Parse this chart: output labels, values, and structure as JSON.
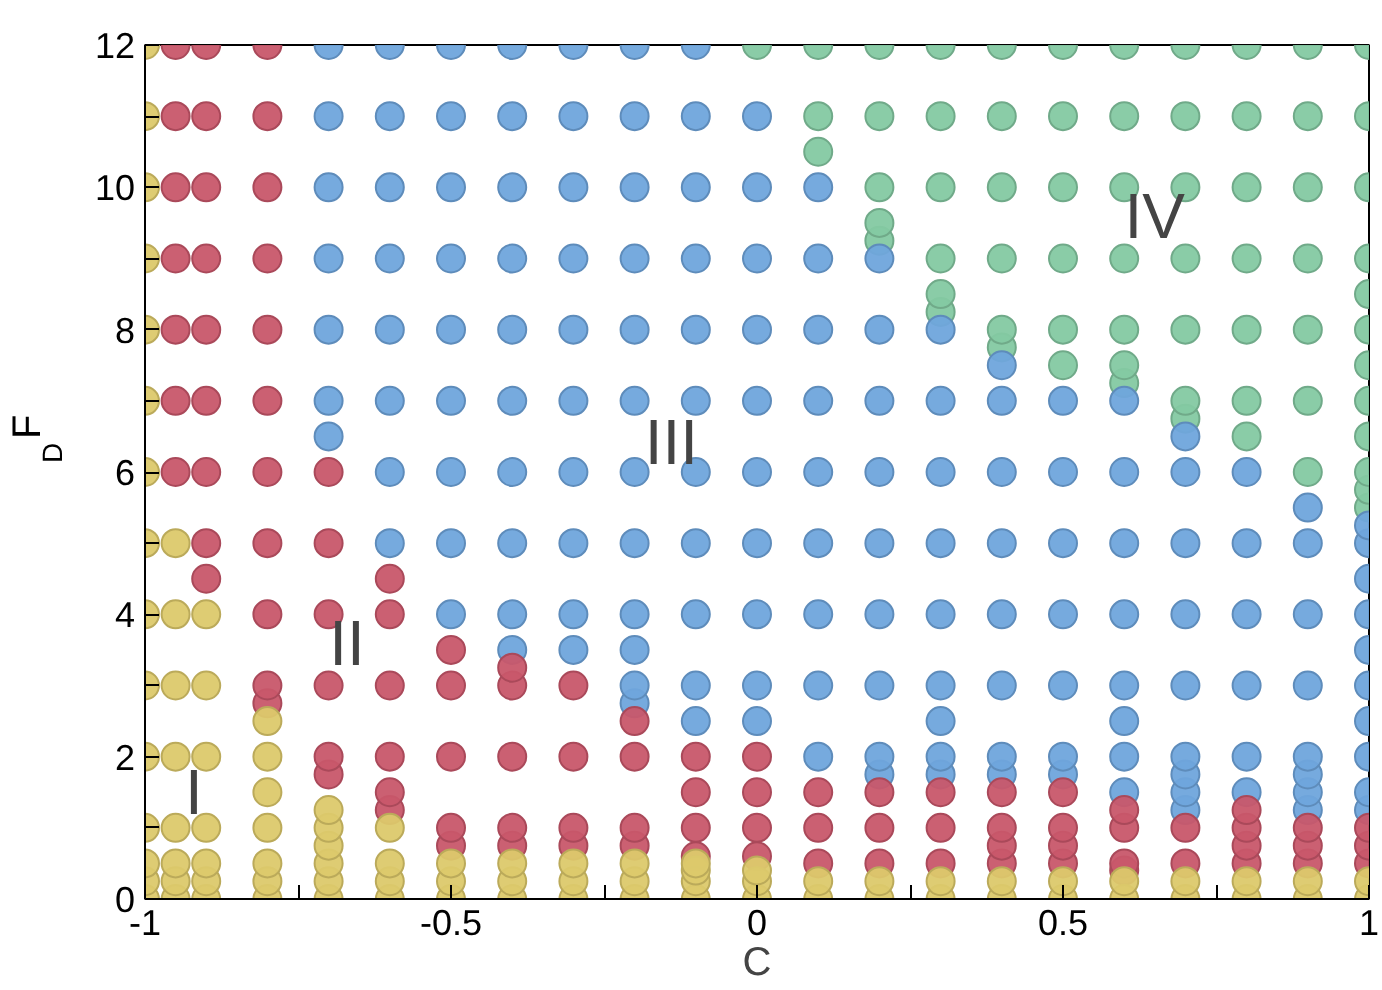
{
  "chart_data": {
    "type": "scatter",
    "xlabel": "C",
    "ylabel": "F$_{D}$",
    "xlim": [
      -1,
      1
    ],
    "ylim": [
      0,
      12
    ],
    "xticks": [
      -1,
      {
        "value": -0.75,
        "label": null
      },
      -0.5,
      {
        "value": -0.25,
        "label": null
      },
      0,
      {
        "value": 0.25,
        "label": null
      },
      0.5,
      {
        "value": 0.75,
        "label": null
      },
      1
    ],
    "yticks": [
      0,
      {
        "value": 1,
        "label": null
      },
      2,
      {
        "value": 3,
        "label": null
      },
      4,
      {
        "value": 5,
        "label": null
      },
      6,
      {
        "value": 7,
        "label": null
      },
      8,
      {
        "value": 9,
        "label": null
      },
      10,
      {
        "value": 11,
        "label": null
      },
      12
    ],
    "grid": false,
    "marker": "circle",
    "annotations": [
      "I",
      "II",
      "III",
      "IV"
    ],
    "series": [
      {
        "color": "#84c9a2",
        "x": [
          0,
          0.1,
          0.1,
          0.1,
          0.2,
          0.2,
          0.2,
          0.2,
          0.2,
          0.3,
          0.3,
          0.3,
          0.3,
          0.3,
          0.3,
          0.4,
          0.4,
          0.4,
          0.4,
          0.4,
          0.4,
          0.5,
          0.5,
          0.5,
          0.5,
          0.5,
          0.5,
          0.6,
          0.6,
          0.6,
          0.6,
          0.6,
          0.6,
          0.6,
          0.7,
          0.7,
          0.7,
          0.7,
          0.7,
          0.7,
          0.7,
          0.8,
          0.8,
          0.8,
          0.8,
          0.8,
          0.8,
          0.8,
          0.9,
          0.9,
          0.9,
          0.9,
          0.9,
          0.9,
          0.9,
          1,
          1,
          1,
          1,
          1,
          1,
          1,
          1,
          1,
          1,
          1,
          1
        ],
        "values": [
          12,
          10.5,
          11,
          12,
          9.25,
          9.5,
          10,
          11,
          12,
          8.25,
          8.5,
          9,
          10,
          11,
          12,
          7.75,
          8,
          9,
          10,
          11,
          12,
          7.5,
          8,
          9,
          10,
          11,
          12,
          7.25,
          7.5,
          8,
          9,
          10,
          11,
          12,
          6.75,
          7,
          8,
          9,
          10,
          11,
          12,
          6.5,
          7,
          8,
          9,
          10,
          11,
          12,
          6,
          7,
          8,
          9,
          10,
          11,
          12,
          5.5,
          5.75,
          6,
          6.5,
          7,
          7.5,
          8,
          8.5,
          9,
          10,
          11,
          12
        ]
      },
      {
        "color": "#6fa5dc",
        "x": [
          -0.7,
          -0.7,
          -0.7,
          -0.7,
          -0.7,
          -0.7,
          -0.7,
          -0.6,
          -0.6,
          -0.6,
          -0.6,
          -0.6,
          -0.6,
          -0.6,
          -0.6,
          -0.5,
          -0.5,
          -0.5,
          -0.5,
          -0.5,
          -0.5,
          -0.5,
          -0.5,
          -0.5,
          -0.4,
          -0.4,
          -0.4,
          -0.4,
          -0.4,
          -0.4,
          -0.4,
          -0.4,
          -0.4,
          -0.4,
          -0.3,
          -0.3,
          -0.3,
          -0.3,
          -0.3,
          -0.3,
          -0.3,
          -0.3,
          -0.3,
          -0.3,
          -0.2,
          -0.2,
          -0.2,
          -0.2,
          -0.2,
          -0.2,
          -0.2,
          -0.2,
          -0.2,
          -0.2,
          -0.2,
          -0.2,
          -0.1,
          -0.1,
          -0.1,
          -0.1,
          -0.1,
          -0.1,
          -0.1,
          -0.1,
          -0.1,
          -0.1,
          -0.1,
          0,
          0,
          0,
          0,
          0,
          0,
          0,
          0,
          0,
          0,
          0.1,
          0.1,
          0.1,
          0.1,
          0.1,
          0.1,
          0.1,
          0.1,
          0.1,
          0.2,
          0.2,
          0.2,
          0.2,
          0.2,
          0.2,
          0.2,
          0.2,
          0.2,
          0.3,
          0.3,
          0.3,
          0.3,
          0.3,
          0.3,
          0.3,
          0.3,
          0.3,
          0.4,
          0.4,
          0.4,
          0.4,
          0.4,
          0.4,
          0.4,
          0.4,
          0.5,
          0.5,
          0.5,
          0.5,
          0.5,
          0.5,
          0.5,
          0.6,
          0.6,
          0.6,
          0.6,
          0.6,
          0.6,
          0.6,
          0.6,
          0.7,
          0.7,
          0.7,
          0.7,
          0.7,
          0.7,
          0.7,
          0.7,
          0.7,
          0.8,
          0.8,
          0.8,
          0.8,
          0.8,
          0.8,
          0.9,
          0.9,
          0.9,
          0.9,
          0.9,
          0.9,
          0.9,
          0.9,
          1,
          1,
          1,
          1,
          1,
          1,
          1,
          1,
          1,
          1
        ],
        "values": [
          6.5,
          7,
          8,
          9,
          10,
          11,
          12,
          5,
          6,
          7,
          8,
          9,
          10,
          11,
          12,
          4,
          5,
          6,
          7,
          8,
          9,
          10,
          11,
          12,
          3.5,
          4,
          5,
          6,
          7,
          8,
          9,
          10,
          11,
          12,
          3.5,
          4,
          5,
          6,
          7,
          8,
          9,
          10,
          11,
          12,
          2.75,
          3,
          3.5,
          4,
          5,
          6,
          7,
          8,
          9,
          10,
          11,
          12,
          2.5,
          3,
          4,
          5,
          6,
          7,
          8,
          9,
          10,
          11,
          12,
          2.5,
          3,
          4,
          5,
          6,
          7,
          8,
          9,
          10,
          11,
          2,
          3,
          4,
          5,
          6,
          7,
          8,
          9,
          10,
          1.75,
          2,
          3,
          4,
          5,
          6,
          7,
          8,
          9,
          1.75,
          2,
          2.5,
          3,
          4,
          5,
          6,
          7,
          8,
          1.75,
          2,
          3,
          4,
          5,
          6,
          7,
          7.5,
          1.75,
          2,
          3,
          4,
          5,
          6,
          7,
          1.5,
          2,
          2.5,
          3,
          4,
          5,
          6,
          7,
          1.25,
          1.5,
          1.75,
          2,
          3,
          4,
          5,
          6,
          6.5,
          1.5,
          2,
          3,
          4,
          5,
          6,
          1.25,
          1.5,
          1.75,
          2,
          3,
          4,
          5,
          5.5,
          1.25,
          1.5,
          2,
          2.5,
          3,
          3.5,
          4,
          4.5,
          5,
          5.25
        ]
      },
      {
        "color": "#c8576a",
        "x": [
          -0.95,
          -0.95,
          -0.95,
          -0.95,
          -0.95,
          -0.95,
          -0.95,
          -0.9,
          -0.9,
          -0.9,
          -0.9,
          -0.9,
          -0.9,
          -0.9,
          -0.9,
          -0.9,
          -0.8,
          -0.8,
          -0.8,
          -0.8,
          -0.8,
          -0.8,
          -0.8,
          -0.8,
          -0.8,
          -0.8,
          -0.8,
          -0.7,
          -0.7,
          -0.7,
          -0.7,
          -0.7,
          -0.7,
          -0.6,
          -0.6,
          -0.6,
          -0.6,
          -0.6,
          -0.6,
          -0.5,
          -0.5,
          -0.5,
          -0.5,
          -0.5,
          -0.4,
          -0.4,
          -0.4,
          -0.4,
          -0.4,
          -0.3,
          -0.3,
          -0.3,
          -0.3,
          -0.2,
          -0.2,
          -0.2,
          -0.2,
          -0.1,
          -0.1,
          -0.1,
          -0.1,
          0,
          0,
          0,
          0,
          0.1,
          0.1,
          0.1,
          0.2,
          0.2,
          0.2,
          0.3,
          0.3,
          0.3,
          0.4,
          0.4,
          0.4,
          0.4,
          0.5,
          0.5,
          0.5,
          0.5,
          0.6,
          0.6,
          0.6,
          0.6,
          0.7,
          0.7,
          0.8,
          0.8,
          0.8,
          0.8,
          0.9,
          0.9,
          0.9,
          1,
          1,
          1
        ],
        "values": [
          6,
          7,
          8,
          9,
          10,
          11,
          12,
          4.5,
          5,
          6,
          7,
          8,
          9,
          10,
          11,
          12,
          2.75,
          3,
          4,
          5,
          6,
          7,
          8,
          9,
          10,
          11,
          12,
          1.75,
          2,
          3,
          4,
          5,
          6,
          1.25,
          1.5,
          2,
          3,
          4,
          4.5,
          0.75,
          1,
          2,
          3,
          3.5,
          0.75,
          1,
          2,
          3,
          3.25,
          0.75,
          1,
          2,
          3,
          0.75,
          1,
          2,
          2.5,
          0.6,
          1,
          1.5,
          2,
          0.6,
          1,
          1.5,
          2,
          0.5,
          1,
          1.5,
          0.5,
          1,
          1.5,
          0.5,
          1,
          1.5,
          0.5,
          0.75,
          1,
          1.5,
          0.5,
          0.75,
          1,
          1.5,
          0.4,
          0.5,
          1,
          1.25,
          0.5,
          1,
          0.5,
          0.75,
          1,
          1.25,
          0.5,
          0.75,
          1,
          0.5,
          0.75,
          1
        ]
      },
      {
        "color": "#dcc96b",
        "x": [
          -1,
          -1,
          -1,
          -1,
          -1,
          -1,
          -1,
          -1,
          -1,
          -1,
          -1,
          -1,
          -1,
          -1,
          -1,
          -0.95,
          -0.95,
          -0.95,
          -0.95,
          -0.95,
          -0.95,
          -0.95,
          -0.95,
          -0.9,
          -0.9,
          -0.9,
          -0.9,
          -0.9,
          -0.9,
          -0.9,
          -0.8,
          -0.8,
          -0.8,
          -0.8,
          -0.8,
          -0.8,
          -0.8,
          -0.7,
          -0.7,
          -0.7,
          -0.7,
          -0.7,
          -0.7,
          -0.6,
          -0.6,
          -0.6,
          -0.6,
          -0.5,
          -0.5,
          -0.5,
          -0.4,
          -0.4,
          -0.4,
          -0.3,
          -0.3,
          -0.3,
          -0.2,
          -0.2,
          -0.2,
          -0.1,
          -0.1,
          -0.1,
          -0.1,
          0,
          0,
          0,
          0.1,
          0.1,
          0.2,
          0.2,
          0.3,
          0.3,
          0.4,
          0.4,
          0.5,
          0.5,
          0.6,
          0.6,
          0.7,
          0.7,
          0.8,
          0.8,
          0.9,
          0.9,
          1,
          1
        ],
        "values": [
          0,
          0.25,
          0.5,
          1,
          2,
          3,
          4,
          5,
          6,
          7,
          8,
          9,
          10,
          11,
          12,
          0,
          0.25,
          0.5,
          1,
          2,
          3,
          4,
          5,
          0,
          0.25,
          0.5,
          1,
          2,
          3,
          4,
          0,
          0.25,
          0.5,
          1,
          1.5,
          2,
          2.5,
          0,
          0.25,
          0.5,
          0.75,
          1,
          1.25,
          0,
          0.25,
          0.5,
          1,
          0,
          0.25,
          0.5,
          0,
          0.25,
          0.5,
          0,
          0.25,
          0.5,
          0,
          0.25,
          0.5,
          0,
          0.25,
          0.4,
          0.5,
          0,
          0.25,
          0.4,
          0,
          0.25,
          0,
          0.25,
          0,
          0.25,
          0,
          0.25,
          0,
          0.25,
          0,
          0.25,
          0,
          0.25,
          0,
          0.25,
          0,
          0.25,
          0,
          0.25
        ]
      }
    ]
  }
}
